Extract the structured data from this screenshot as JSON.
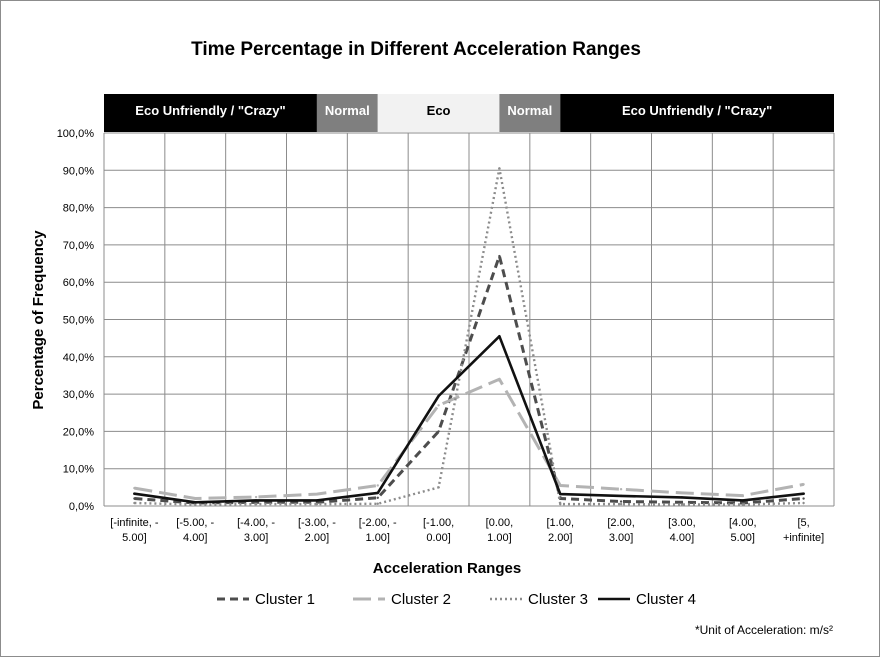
{
  "chart_data": {
    "type": "line",
    "title": "Time Percentage in Different Acceleration Ranges",
    "xlabel": "Acceleration Ranges",
    "ylabel": "Percentage of Frequency",
    "ylim": [
      0,
      100
    ],
    "y_ticks": [
      "0,0%",
      "10,0%",
      "20,0%",
      "30,0%",
      "40,0%",
      "50,0%",
      "60,0%",
      "70,0%",
      "80,0%",
      "90,0%",
      "100,0%"
    ],
    "categories": [
      [
        "[-infinite, -",
        "5.00]"
      ],
      [
        "[-5.00, -",
        "4.00]"
      ],
      [
        "[-4.00, -",
        "3.00]"
      ],
      [
        "[-3.00, -",
        "2.00]"
      ],
      [
        "[-2.00, -",
        "1.00]"
      ],
      [
        "[-1.00,",
        "0.00]"
      ],
      [
        "[0.00,",
        "1.00]"
      ],
      [
        "[1.00,",
        "2.00]"
      ],
      [
        "[2.00,",
        "3.00]"
      ],
      [
        "[3.00,",
        "4.00]"
      ],
      [
        "[4.00,",
        "5.00]"
      ],
      [
        "[5,",
        "+infinite]"
      ]
    ],
    "series": [
      {
        "name": "Cluster 1",
        "color": "#4d4d4d",
        "dash": "dashed",
        "values": [
          2.0,
          0.8,
          1.0,
          1.0,
          2.2,
          20.0,
          67.0,
          2.0,
          1.2,
          1.0,
          0.8,
          2.0
        ]
      },
      {
        "name": "Cluster 2",
        "color": "#b3b3b3",
        "dash": "long-dash",
        "values": [
          4.8,
          2.0,
          2.4,
          3.2,
          5.5,
          27.0,
          34.0,
          5.5,
          4.5,
          3.5,
          2.8,
          5.8
        ]
      },
      {
        "name": "Cluster 3",
        "color": "#8c8c8c",
        "dash": "dotted",
        "values": [
          0.8,
          0.4,
          0.5,
          0.5,
          0.6,
          5.0,
          90.5,
          0.5,
          0.5,
          0.4,
          0.4,
          0.8
        ]
      },
      {
        "name": "Cluster 4",
        "color": "#111111",
        "dash": "solid",
        "values": [
          3.3,
          1.0,
          1.5,
          1.5,
          3.5,
          29.5,
          45.5,
          3.2,
          2.7,
          2.3,
          1.5,
          3.3
        ]
      }
    ],
    "bands": [
      {
        "label": "Eco Unfriendly / \"Crazy\"",
        "fill": "#000000",
        "text_color": "#ffffff",
        "from": 0,
        "to": 3.5
      },
      {
        "label": "Normal",
        "fill": "#7f7f7f",
        "text_color": "#ffffff",
        "from": 3.5,
        "to": 4.5
      },
      {
        "label": "Eco",
        "fill": "#f2f2f2",
        "text_color": "#000000",
        "from": 4.5,
        "to": 6.5
      },
      {
        "label": "Normal",
        "fill": "#7f7f7f",
        "text_color": "#ffffff",
        "from": 6.5,
        "to": 7.5
      },
      {
        "label": "Eco Unfriendly / \"Crazy\"",
        "fill": "#000000",
        "text_color": "#ffffff",
        "from": 7.5,
        "to": 12
      }
    ],
    "grid": true,
    "legend_position": "bottom",
    "note": "*Unit of Acceleration: m/s²"
  }
}
